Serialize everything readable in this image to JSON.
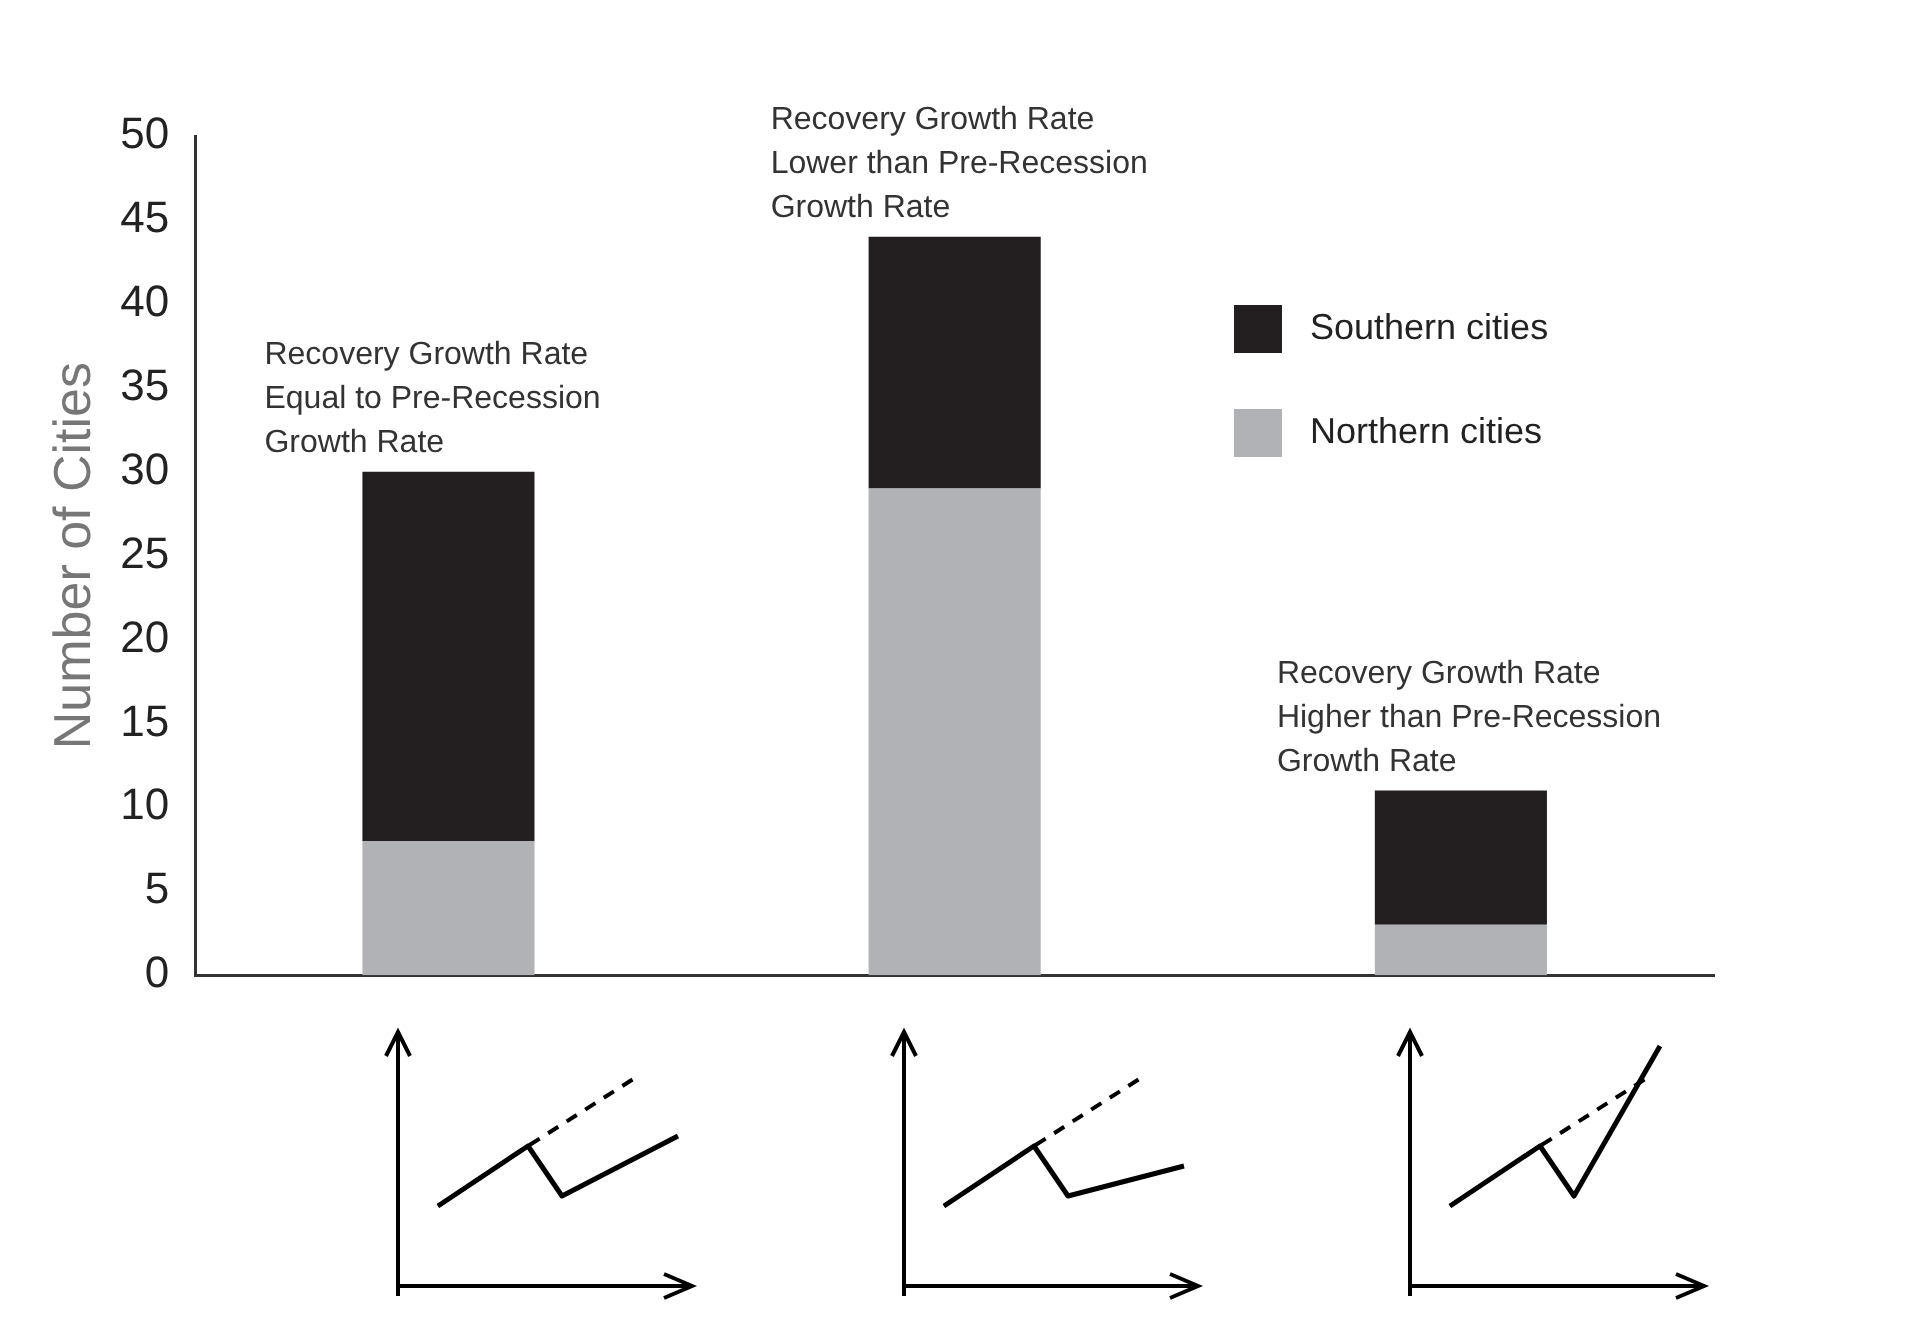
{
  "chart_data": {
    "type": "bar",
    "stacked": true,
    "ylabel": "Number of Cities",
    "categories": [
      null,
      null,
      null
    ],
    "series": [
      {
        "name": "Northern cities",
        "color": "#b1b2b6",
        "values": [
          8,
          29,
          3
        ]
      },
      {
        "name": "Southern cities",
        "color": "#231f20",
        "values": [
          22,
          15,
          8
        ]
      }
    ],
    "ylim": [
      0,
      50
    ],
    "yticks": [
      0,
      5,
      10,
      15,
      20,
      25,
      30,
      35,
      40,
      45,
      50
    ],
    "grid": false,
    "legend": "right",
    "annotations": [
      "Recovery Growth Rate\nEqual to Pre-Recession\nGrowth Rate",
      "Recovery Growth Rate\nLower than Pre-Recession\nGrowth Rate",
      "Recovery Growth Rate\nHigher than Pre-Recession\nGrowth Rate"
    ]
  }
}
